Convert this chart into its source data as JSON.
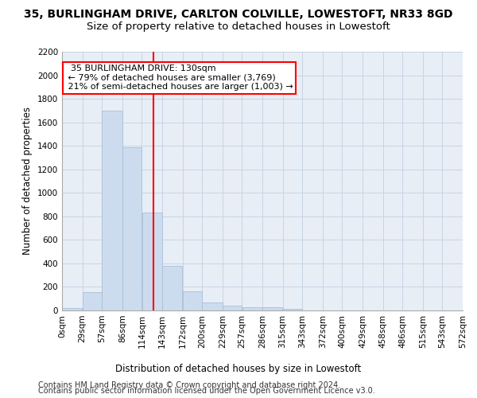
{
  "title_line1": "35, BURLINGHAM DRIVE, CARLTON COLVILLE, LOWESTOFT, NR33 8GD",
  "title_line2": "Size of property relative to detached houses in Lowestoft",
  "xlabel": "Distribution of detached houses by size in Lowestoft",
  "ylabel": "Number of detached properties",
  "footer_line1": "Contains HM Land Registry data © Crown copyright and database right 2024.",
  "footer_line2": "Contains public sector information licensed under the Open Government Licence v3.0.",
  "bin_edges": [
    0,
    29,
    57,
    86,
    114,
    143,
    172,
    200,
    229,
    257,
    286,
    315,
    343,
    372,
    400,
    429,
    458,
    486,
    515,
    543,
    572
  ],
  "bar_values": [
    20,
    155,
    1700,
    1390,
    835,
    380,
    165,
    65,
    40,
    30,
    30,
    15,
    0,
    0,
    0,
    0,
    0,
    0,
    0,
    0
  ],
  "bar_color": "#ccdcee",
  "bar_edge_color": "#a8c0d8",
  "grid_color": "#c8d4e4",
  "background_color": "#e8eef6",
  "vline_x": 130,
  "vline_color": "red",
  "annotation_text": "  35 BURLINGHAM DRIVE: 130sqm  \n ← 79% of detached houses are smaller (3,769)\n 21% of semi-detached houses are larger (1,003) →",
  "annotation_box_color": "white",
  "annotation_box_edge_color": "red",
  "ylim": [
    0,
    2200
  ],
  "yticks": [
    0,
    200,
    400,
    600,
    800,
    1000,
    1200,
    1400,
    1600,
    1800,
    2000,
    2200
  ],
  "title_fontsize": 10,
  "subtitle_fontsize": 9.5,
  "axis_label_fontsize": 8.5,
  "tick_fontsize": 7.5,
  "annotation_fontsize": 8,
  "footer_fontsize": 7
}
